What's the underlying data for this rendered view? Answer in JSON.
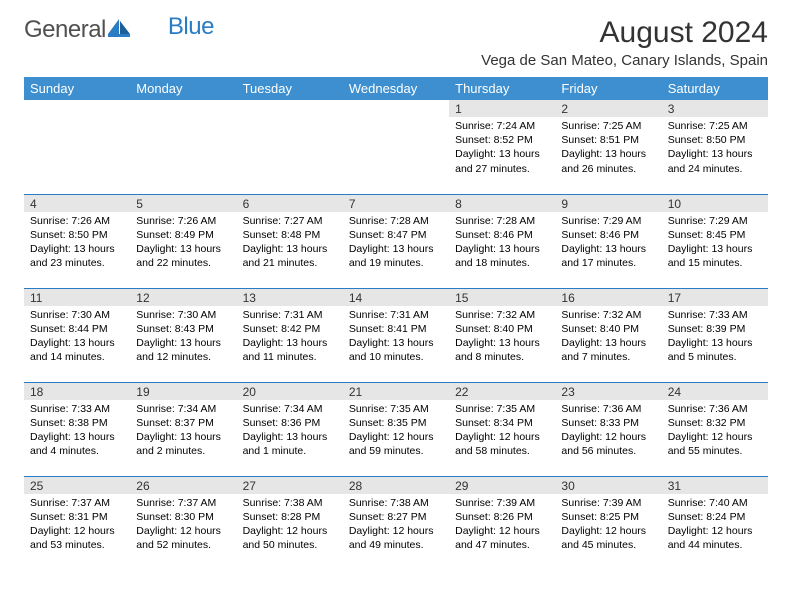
{
  "logo": {
    "part1": "General",
    "part2": "Blue"
  },
  "title": "August 2024",
  "location": "Vega de San Mateo, Canary Islands, Spain",
  "colors": {
    "header_bg": "#3d8fcf",
    "header_text": "#ffffff",
    "week_divider": "#2a7dc4",
    "daynum_bg": "#e6e6e6",
    "body_text": "#000000",
    "logo_gray": "#505050",
    "logo_blue": "#2a7dc4"
  },
  "weekdays": [
    "Sunday",
    "Monday",
    "Tuesday",
    "Wednesday",
    "Thursday",
    "Friday",
    "Saturday"
  ],
  "weeks": [
    [
      null,
      null,
      null,
      null,
      {
        "n": "1",
        "sunrise": "7:24 AM",
        "sunset": "8:52 PM",
        "daylight": "13 hours and 27 minutes."
      },
      {
        "n": "2",
        "sunrise": "7:25 AM",
        "sunset": "8:51 PM",
        "daylight": "13 hours and 26 minutes."
      },
      {
        "n": "3",
        "sunrise": "7:25 AM",
        "sunset": "8:50 PM",
        "daylight": "13 hours and 24 minutes."
      }
    ],
    [
      {
        "n": "4",
        "sunrise": "7:26 AM",
        "sunset": "8:50 PM",
        "daylight": "13 hours and 23 minutes."
      },
      {
        "n": "5",
        "sunrise": "7:26 AM",
        "sunset": "8:49 PM",
        "daylight": "13 hours and 22 minutes."
      },
      {
        "n": "6",
        "sunrise": "7:27 AM",
        "sunset": "8:48 PM",
        "daylight": "13 hours and 21 minutes."
      },
      {
        "n": "7",
        "sunrise": "7:28 AM",
        "sunset": "8:47 PM",
        "daylight": "13 hours and 19 minutes."
      },
      {
        "n": "8",
        "sunrise": "7:28 AM",
        "sunset": "8:46 PM",
        "daylight": "13 hours and 18 minutes."
      },
      {
        "n": "9",
        "sunrise": "7:29 AM",
        "sunset": "8:46 PM",
        "daylight": "13 hours and 17 minutes."
      },
      {
        "n": "10",
        "sunrise": "7:29 AM",
        "sunset": "8:45 PM",
        "daylight": "13 hours and 15 minutes."
      }
    ],
    [
      {
        "n": "11",
        "sunrise": "7:30 AM",
        "sunset": "8:44 PM",
        "daylight": "13 hours and 14 minutes."
      },
      {
        "n": "12",
        "sunrise": "7:30 AM",
        "sunset": "8:43 PM",
        "daylight": "13 hours and 12 minutes."
      },
      {
        "n": "13",
        "sunrise": "7:31 AM",
        "sunset": "8:42 PM",
        "daylight": "13 hours and 11 minutes."
      },
      {
        "n": "14",
        "sunrise": "7:31 AM",
        "sunset": "8:41 PM",
        "daylight": "13 hours and 10 minutes."
      },
      {
        "n": "15",
        "sunrise": "7:32 AM",
        "sunset": "8:40 PM",
        "daylight": "13 hours and 8 minutes."
      },
      {
        "n": "16",
        "sunrise": "7:32 AM",
        "sunset": "8:40 PM",
        "daylight": "13 hours and 7 minutes."
      },
      {
        "n": "17",
        "sunrise": "7:33 AM",
        "sunset": "8:39 PM",
        "daylight": "13 hours and 5 minutes."
      }
    ],
    [
      {
        "n": "18",
        "sunrise": "7:33 AM",
        "sunset": "8:38 PM",
        "daylight": "13 hours and 4 minutes."
      },
      {
        "n": "19",
        "sunrise": "7:34 AM",
        "sunset": "8:37 PM",
        "daylight": "13 hours and 2 minutes."
      },
      {
        "n": "20",
        "sunrise": "7:34 AM",
        "sunset": "8:36 PM",
        "daylight": "13 hours and 1 minute."
      },
      {
        "n": "21",
        "sunrise": "7:35 AM",
        "sunset": "8:35 PM",
        "daylight": "12 hours and 59 minutes."
      },
      {
        "n": "22",
        "sunrise": "7:35 AM",
        "sunset": "8:34 PM",
        "daylight": "12 hours and 58 minutes."
      },
      {
        "n": "23",
        "sunrise": "7:36 AM",
        "sunset": "8:33 PM",
        "daylight": "12 hours and 56 minutes."
      },
      {
        "n": "24",
        "sunrise": "7:36 AM",
        "sunset": "8:32 PM",
        "daylight": "12 hours and 55 minutes."
      }
    ],
    [
      {
        "n": "25",
        "sunrise": "7:37 AM",
        "sunset": "8:31 PM",
        "daylight": "12 hours and 53 minutes."
      },
      {
        "n": "26",
        "sunrise": "7:37 AM",
        "sunset": "8:30 PM",
        "daylight": "12 hours and 52 minutes."
      },
      {
        "n": "27",
        "sunrise": "7:38 AM",
        "sunset": "8:28 PM",
        "daylight": "12 hours and 50 minutes."
      },
      {
        "n": "28",
        "sunrise": "7:38 AM",
        "sunset": "8:27 PM",
        "daylight": "12 hours and 49 minutes."
      },
      {
        "n": "29",
        "sunrise": "7:39 AM",
        "sunset": "8:26 PM",
        "daylight": "12 hours and 47 minutes."
      },
      {
        "n": "30",
        "sunrise": "7:39 AM",
        "sunset": "8:25 PM",
        "daylight": "12 hours and 45 minutes."
      },
      {
        "n": "31",
        "sunrise": "7:40 AM",
        "sunset": "8:24 PM",
        "daylight": "12 hours and 44 minutes."
      }
    ]
  ],
  "labels": {
    "sunrise": "Sunrise: ",
    "sunset": "Sunset: ",
    "daylight": "Daylight: "
  }
}
